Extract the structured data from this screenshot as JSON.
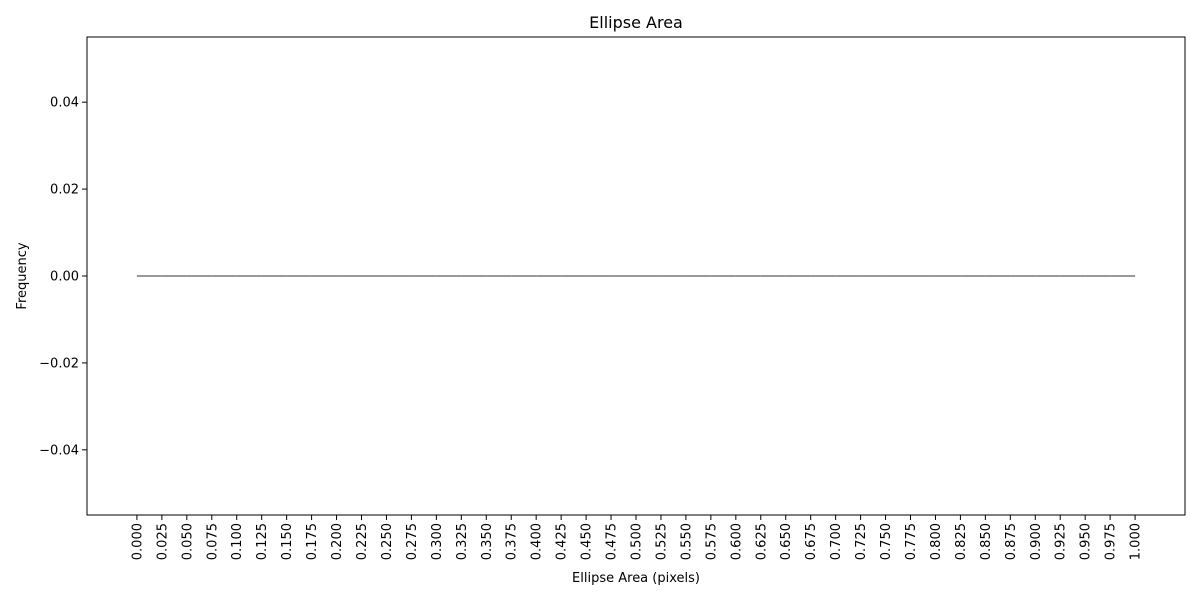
{
  "chart_data": {
    "type": "histogram",
    "title": "Ellipse Area",
    "xlabel": "Ellipse Area (pixels)",
    "ylabel": "Frequency",
    "bins": [
      0,
      0.025,
      0.05,
      0.075,
      0.1,
      0.125,
      0.15,
      0.175,
      0.2,
      0.225,
      0.25,
      0.275,
      0.3,
      0.325,
      0.35,
      0.375,
      0.4,
      0.425,
      0.45,
      0.475,
      0.5,
      0.525,
      0.55,
      0.575,
      0.6,
      0.625,
      0.65,
      0.675,
      0.7,
      0.725,
      0.75,
      0.775,
      0.8,
      0.825,
      0.85,
      0.875,
      0.9,
      0.925,
      0.95,
      0.975,
      1
    ],
    "counts": [
      0,
      0,
      0,
      0,
      0,
      0,
      0,
      0,
      0,
      0,
      0,
      0,
      0,
      0,
      0,
      0,
      0,
      0,
      0,
      0,
      0,
      0,
      0,
      0,
      0,
      0,
      0,
      0,
      0,
      0,
      0,
      0,
      0,
      0,
      0,
      0,
      0,
      0,
      0,
      0
    ],
    "color": "#1f77b4",
    "edgecolor": "#333333",
    "xlim": [
      -0.05,
      1.05
    ],
    "ylim": [
      -0.055,
      0.055
    ],
    "xticks": [
      {
        "value": 0,
        "label": "0.000"
      },
      {
        "value": 0.025,
        "label": "0.025"
      },
      {
        "value": 0.05,
        "label": "0.050"
      },
      {
        "value": 0.075,
        "label": "0.075"
      },
      {
        "value": 0.1,
        "label": "0.100"
      },
      {
        "value": 0.125,
        "label": "0.125"
      },
      {
        "value": 0.15,
        "label": "0.150"
      },
      {
        "value": 0.175,
        "label": "0.175"
      },
      {
        "value": 0.2,
        "label": "0.200"
      },
      {
        "value": 0.225,
        "label": "0.225"
      },
      {
        "value": 0.25,
        "label": "0.250"
      },
      {
        "value": 0.275,
        "label": "0.275"
      },
      {
        "value": 0.3,
        "label": "0.300"
      },
      {
        "value": 0.325,
        "label": "0.325"
      },
      {
        "value": 0.35,
        "label": "0.350"
      },
      {
        "value": 0.375,
        "label": "0.375"
      },
      {
        "value": 0.4,
        "label": "0.400"
      },
      {
        "value": 0.425,
        "label": "0.425"
      },
      {
        "value": 0.45,
        "label": "0.450"
      },
      {
        "value": 0.475,
        "label": "0.475"
      },
      {
        "value": 0.5,
        "label": "0.500"
      },
      {
        "value": 0.525,
        "label": "0.525"
      },
      {
        "value": 0.55,
        "label": "0.550"
      },
      {
        "value": 0.575,
        "label": "0.575"
      },
      {
        "value": 0.6,
        "label": "0.600"
      },
      {
        "value": 0.625,
        "label": "0.625"
      },
      {
        "value": 0.65,
        "label": "0.650"
      },
      {
        "value": 0.675,
        "label": "0.675"
      },
      {
        "value": 0.7,
        "label": "0.700"
      },
      {
        "value": 0.725,
        "label": "0.725"
      },
      {
        "value": 0.75,
        "label": "0.750"
      },
      {
        "value": 0.775,
        "label": "0.775"
      },
      {
        "value": 0.8,
        "label": "0.800"
      },
      {
        "value": 0.825,
        "label": "0.825"
      },
      {
        "value": 0.85,
        "label": "0.850"
      },
      {
        "value": 0.875,
        "label": "0.875"
      },
      {
        "value": 0.9,
        "label": "0.900"
      },
      {
        "value": 0.925,
        "label": "0.925"
      },
      {
        "value": 0.95,
        "label": "0.950"
      },
      {
        "value": 0.975,
        "label": "0.975"
      },
      {
        "value": 1,
        "label": "1.000"
      }
    ],
    "yticks": [
      {
        "value": -0.04,
        "label": "−0.04"
      },
      {
        "value": -0.02,
        "label": "−0.02"
      },
      {
        "value": 0,
        "label": "0.00"
      },
      {
        "value": 0.02,
        "label": "0.02"
      },
      {
        "value": 0.04,
        "label": "0.04"
      }
    ],
    "grid": false
  }
}
